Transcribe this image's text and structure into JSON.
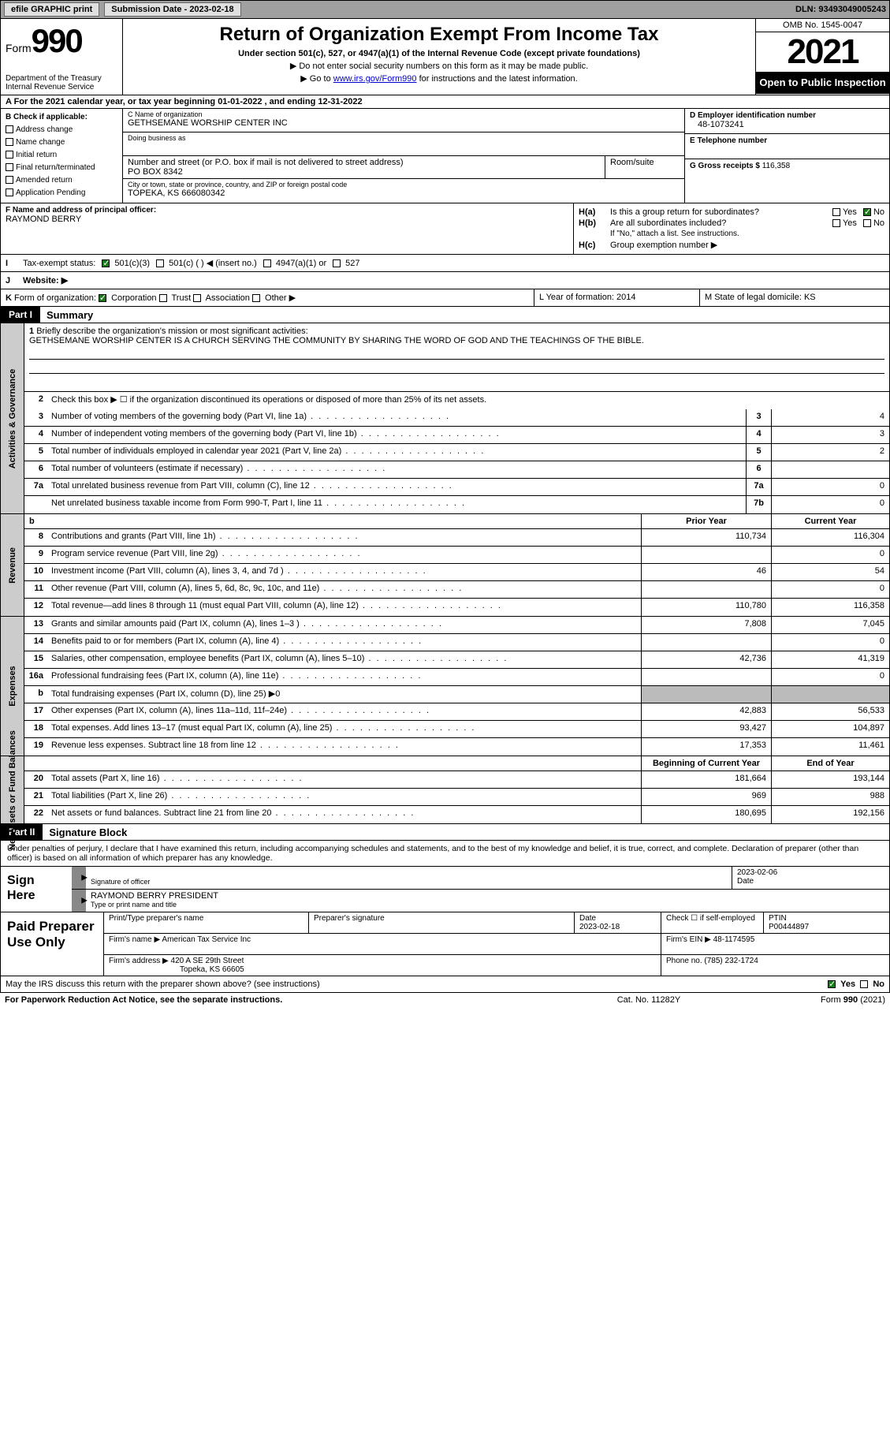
{
  "topbar": {
    "efile_btn": "efile GRAPHIC print",
    "submission_label": "Submission Date - 2023-02-18",
    "dln": "DLN: 93493049005243"
  },
  "header": {
    "form_word": "Form",
    "form_num": "990",
    "dept": "Department of the Treasury Internal Revenue Service",
    "title": "Return of Organization Exempt From Income Tax",
    "subtitle": "Under section 501(c), 527, or 4947(a)(1) of the Internal Revenue Code (except private foundations)",
    "note1": "▶ Do not enter social security numbers on this form as it may be made public.",
    "note2_pre": "▶ Go to ",
    "note2_link": "www.irs.gov/Form990",
    "note2_post": " for instructions and the latest information.",
    "omb": "OMB No. 1545-0047",
    "year": "2021",
    "inspect": "Open to Public Inspection"
  },
  "row_a": "A For the 2021 calendar year, or tax year beginning 01-01-2022    , and ending 12-31-2022",
  "col_b": {
    "title": "B Check if applicable:",
    "opts": [
      "Address change",
      "Name change",
      "Initial return",
      "Final return/terminated",
      "Amended return",
      "Application Pending"
    ]
  },
  "col_c": {
    "name_label": "C Name of organization",
    "name": "GETHSEMANE WORSHIP CENTER INC",
    "dba_label": "Doing business as",
    "dba": "",
    "street_label": "Number and street (or P.O. box if mail is not delivered to street address)",
    "street": "PO BOX 8342",
    "room_label": "Room/suite",
    "room": "",
    "city_label": "City or town, state or province, country, and ZIP or foreign postal code",
    "city": "TOPEKA, KS  666080342"
  },
  "col_d": {
    "ein_label": "D Employer identification number",
    "ein": "48-1073241",
    "tel_label": "E Telephone number",
    "tel": "",
    "gross_label": "G Gross receipts $",
    "gross": "116,358"
  },
  "col_f": {
    "label": "F Name and address of principal officer:",
    "name": "RAYMOND BERRY"
  },
  "col_h": {
    "ha_label": "H(a)",
    "ha_text": "Is this a group return for subordinates?",
    "hb_label": "H(b)",
    "hb_text": "Are all subordinates included?",
    "hb_note": "If \"No,\" attach a list. See instructions.",
    "hc_label": "H(c)",
    "hc_text": "Group exemption number ▶",
    "yes": "Yes",
    "no": "No"
  },
  "row_i": {
    "lbl": "I",
    "text": "Tax-exempt status:",
    "o1": "501(c)(3)",
    "o2": "501(c) (  ) ◀ (insert no.)",
    "o3": "4947(a)(1) or",
    "o4": "527"
  },
  "row_j": {
    "lbl": "J",
    "text": "Website: ▶"
  },
  "row_k": {
    "lbl": "K",
    "text": "Form of organization:",
    "o1": "Corporation",
    "o2": "Trust",
    "o3": "Association",
    "o4": "Other ▶"
  },
  "row_l": {
    "text": "L Year of formation: 2014"
  },
  "row_m": {
    "text": "M State of legal domicile: KS"
  },
  "part1": {
    "header": "Part I",
    "title": "Summary"
  },
  "vtabs": {
    "ag": "Activities & Governance",
    "rev": "Revenue",
    "exp": "Expenses",
    "net": "Net Assets or Fund Balances"
  },
  "mission": {
    "num": "1",
    "label": "Briefly describe the organization's mission or most significant activities:",
    "text": "GETHSEMANE WORSHIP CENTER IS A CHURCH SERVING THE COMMUNITY BY SHARING THE WORD OF GOD AND THE TEACHINGS OF THE BIBLE."
  },
  "lines_ag": [
    {
      "n": "2",
      "d": "Check this box ▶ ☐ if the organization discontinued its operations or disposed of more than 25% of its net assets.",
      "box": "",
      "v": ""
    },
    {
      "n": "3",
      "d": "Number of voting members of the governing body (Part VI, line 1a)",
      "box": "3",
      "v": "4"
    },
    {
      "n": "4",
      "d": "Number of independent voting members of the governing body (Part VI, line 1b)",
      "box": "4",
      "v": "3"
    },
    {
      "n": "5",
      "d": "Total number of individuals employed in calendar year 2021 (Part V, line 2a)",
      "box": "5",
      "v": "2"
    },
    {
      "n": "6",
      "d": "Total number of volunteers (estimate if necessary)",
      "box": "6",
      "v": ""
    },
    {
      "n": "7a",
      "d": "Total unrelated business revenue from Part VIII, column (C), line 12",
      "box": "7a",
      "v": "0"
    },
    {
      "n": "",
      "d": "Net unrelated business taxable income from Form 990-T, Part I, line 11",
      "box": "7b",
      "v": "0"
    }
  ],
  "col_headers": {
    "prior": "Prior Year",
    "current": "Current Year",
    "boy": "Beginning of Current Year",
    "eoy": "End of Year"
  },
  "lines_rev": [
    {
      "n": "8",
      "d": "Contributions and grants (Part VIII, line 1h)",
      "p": "110,734",
      "c": "116,304"
    },
    {
      "n": "9",
      "d": "Program service revenue (Part VIII, line 2g)",
      "p": "",
      "c": "0"
    },
    {
      "n": "10",
      "d": "Investment income (Part VIII, column (A), lines 3, 4, and 7d )",
      "p": "46",
      "c": "54"
    },
    {
      "n": "11",
      "d": "Other revenue (Part VIII, column (A), lines 5, 6d, 8c, 9c, 10c, and 11e)",
      "p": "",
      "c": "0"
    },
    {
      "n": "12",
      "d": "Total revenue—add lines 8 through 11 (must equal Part VIII, column (A), line 12)",
      "p": "110,780",
      "c": "116,358"
    }
  ],
  "lines_exp": [
    {
      "n": "13",
      "d": "Grants and similar amounts paid (Part IX, column (A), lines 1–3 )",
      "p": "7,808",
      "c": "7,045"
    },
    {
      "n": "14",
      "d": "Benefits paid to or for members (Part IX, column (A), line 4)",
      "p": "",
      "c": "0"
    },
    {
      "n": "15",
      "d": "Salaries, other compensation, employee benefits (Part IX, column (A), lines 5–10)",
      "p": "42,736",
      "c": "41,319"
    },
    {
      "n": "16a",
      "d": "Professional fundraising fees (Part IX, column (A), line 11e)",
      "p": "",
      "c": "0"
    },
    {
      "n": "b",
      "d": "Total fundraising expenses (Part IX, column (D), line 25) ▶0",
      "p": "SHADE",
      "c": "SHADE"
    },
    {
      "n": "17",
      "d": "Other expenses (Part IX, column (A), lines 11a–11d, 11f–24e)",
      "p": "42,883",
      "c": "56,533"
    },
    {
      "n": "18",
      "d": "Total expenses. Add lines 13–17 (must equal Part IX, column (A), line 25)",
      "p": "93,427",
      "c": "104,897"
    },
    {
      "n": "19",
      "d": "Revenue less expenses. Subtract line 18 from line 12",
      "p": "17,353",
      "c": "11,461"
    }
  ],
  "lines_net": [
    {
      "n": "20",
      "d": "Total assets (Part X, line 16)",
      "p": "181,664",
      "c": "193,144"
    },
    {
      "n": "21",
      "d": "Total liabilities (Part X, line 26)",
      "p": "969",
      "c": "988"
    },
    {
      "n": "22",
      "d": "Net assets or fund balances. Subtract line 21 from line 20",
      "p": "180,695",
      "c": "192,156"
    }
  ],
  "part2": {
    "header": "Part II",
    "title": "Signature Block"
  },
  "sig": {
    "decl": "Under penalties of perjury, I declare that I have examined this return, including accompanying schedules and statements, and to the best of my knowledge and belief, it is true, correct, and complete. Declaration of preparer (other than officer) is based on all information of which preparer has any knowledge.",
    "sign_here": "Sign Here",
    "officer_sig_label": "Signature of officer",
    "date_val": "2023-02-06",
    "date_label": "Date",
    "officer_name": "RAYMOND BERRY PRESIDENT",
    "officer_name_label": "Type or print name and title"
  },
  "prep": {
    "title": "Paid Preparer Use Only",
    "h1": "Print/Type preparer's name",
    "h2": "Preparer's signature",
    "h3": "Date",
    "h3v": "2023-02-18",
    "h4": "Check ☐ if self-employed",
    "h5": "PTIN",
    "h5v": "P00444897",
    "firm_name_label": "Firm's name    ▶",
    "firm_name": "American Tax Service Inc",
    "firm_ein_label": "Firm's EIN ▶",
    "firm_ein": "48-1174595",
    "firm_addr_label": "Firm's address ▶",
    "firm_addr1": "420 A SE 29th Street",
    "firm_addr2": "Topeka, KS  66605",
    "phone_label": "Phone no.",
    "phone": "(785) 232-1724"
  },
  "discuss": {
    "text": "May the IRS discuss this return with the preparer shown above? (see instructions)",
    "yes": "Yes",
    "no": "No"
  },
  "footer": {
    "left": "For Paperwork Reduction Act Notice, see the separate instructions.",
    "mid": "Cat. No. 11282Y",
    "right": "Form 990 (2021)"
  }
}
